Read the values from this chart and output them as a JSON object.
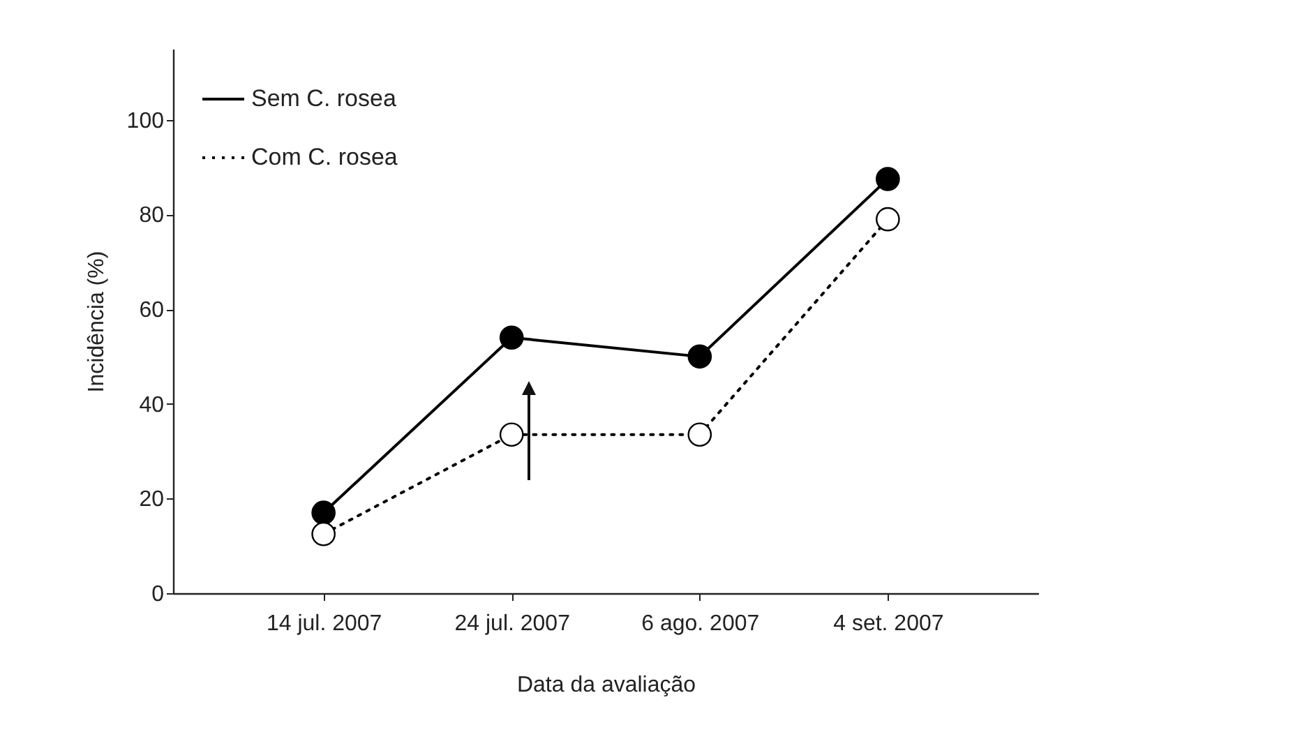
{
  "chart_data": {
    "type": "line",
    "xlabel": "Data da avaliação",
    "ylabel": "Incidência (%)",
    "categories": [
      "14 jul. 2007",
      "24 jul. 2007",
      "6 ago. 2007",
      "4 set. 2007"
    ],
    "series": [
      {
        "name": "Sem C. rosea",
        "color": "#000000",
        "line_style": "solid",
        "values": [
          17,
          54,
          50,
          87.5
        ]
      },
      {
        "name": "Com C. rosea",
        "color": "#000000",
        "line_style": "dotted",
        "values": [
          12.5,
          33.5,
          33.5,
          79
        ]
      }
    ],
    "ylim": [
      0,
      115
    ],
    "yticks": [
      0,
      20,
      40,
      60,
      80,
      100
    ],
    "grid": false,
    "legend": "top left",
    "marker": "circle"
  }
}
